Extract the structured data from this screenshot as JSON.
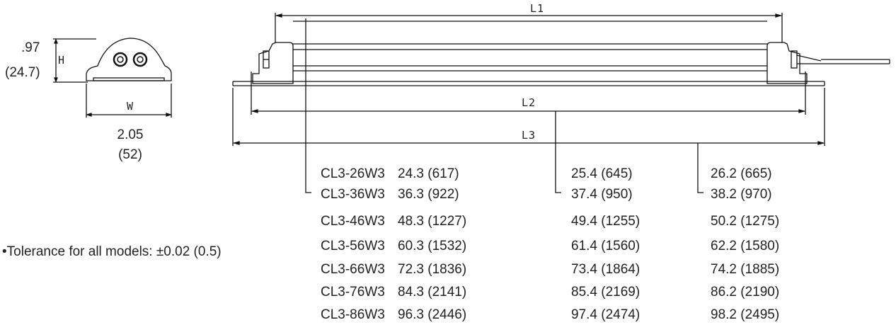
{
  "end_view": {
    "height_letter": "H",
    "height_in": ".97",
    "height_mm": "(24.7)",
    "width_letter": "W",
    "width_in": "2.05",
    "width_mm": "(52)"
  },
  "side_view": {
    "l1_label": "L1",
    "l2_label": "L2",
    "l3_label": "L3"
  },
  "tolerance_note": "•Tolerance for all models: ±0.02 (0.5)",
  "table": {
    "rows": [
      {
        "model": "CL3-26W3",
        "l1": "24.3 (617)",
        "l2": "25.4 (645)",
        "l3": "26.2 (665)"
      },
      {
        "model": "CL3-36W3",
        "l1": "36.3 (922)",
        "l2": "37.4 (950)",
        "l3": "38.2 (970)"
      },
      {
        "model": "CL3-46W3",
        "l1": "48.3 (1227)",
        "l2": "49.4 (1255)",
        "l3": "50.2 (1275)"
      },
      {
        "model": "CL3-56W3",
        "l1": "60.3 (1532)",
        "l2": "61.4 (1560)",
        "l3": "62.2 (1580)"
      },
      {
        "model": "CL3-66W3",
        "l1": "72.3 (1836)",
        "l2": "73.4 (1864)",
        "l3": "74.2 (1885)"
      },
      {
        "model": "CL3-76W3",
        "l1": "84.3 (2141)",
        "l2": "85.4 (2169)",
        "l3": "86.2 (2190)"
      },
      {
        "model": "CL3-86W3",
        "l1": "96.3 (2446)",
        "l2": "97.4 (2474)",
        "l3": "98.2 (2495)"
      }
    ]
  }
}
